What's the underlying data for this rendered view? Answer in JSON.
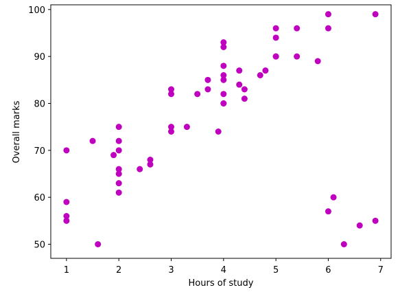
{
  "chart_data": {
    "type": "scatter",
    "title": "",
    "xlabel": "Hours of study",
    "ylabel": "Overall marks",
    "xlim": [
      0.7,
      7.2
    ],
    "ylim": [
      47,
      101
    ],
    "xticks": [
      1,
      2,
      3,
      4,
      5,
      6,
      7
    ],
    "yticks": [
      50,
      60,
      70,
      80,
      90,
      100
    ],
    "grid": false,
    "legend": "none",
    "marker_color": "#bf00bf",
    "points": [
      {
        "x": 1,
        "y": 70
      },
      {
        "x": 1,
        "y": 59
      },
      {
        "x": 1,
        "y": 56
      },
      {
        "x": 1,
        "y": 55
      },
      {
        "x": 1.5,
        "y": 72
      },
      {
        "x": 1.6,
        "y": 50
      },
      {
        "x": 1.9,
        "y": 69
      },
      {
        "x": 2,
        "y": 75
      },
      {
        "x": 2,
        "y": 72
      },
      {
        "x": 2,
        "y": 70
      },
      {
        "x": 2,
        "y": 66
      },
      {
        "x": 2,
        "y": 65
      },
      {
        "x": 2,
        "y": 63
      },
      {
        "x": 2,
        "y": 61
      },
      {
        "x": 2.4,
        "y": 66
      },
      {
        "x": 2.6,
        "y": 68
      },
      {
        "x": 2.6,
        "y": 67
      },
      {
        "x": 3,
        "y": 83
      },
      {
        "x": 3,
        "y": 82
      },
      {
        "x": 3,
        "y": 75
      },
      {
        "x": 3,
        "y": 74
      },
      {
        "x": 3.3,
        "y": 75
      },
      {
        "x": 3.5,
        "y": 82
      },
      {
        "x": 3.7,
        "y": 85
      },
      {
        "x": 3.7,
        "y": 83
      },
      {
        "x": 3.9,
        "y": 74
      },
      {
        "x": 4,
        "y": 93
      },
      {
        "x": 4,
        "y": 92
      },
      {
        "x": 4,
        "y": 88
      },
      {
        "x": 4,
        "y": 86
      },
      {
        "x": 4,
        "y": 85
      },
      {
        "x": 4,
        "y": 82
      },
      {
        "x": 4,
        "y": 80
      },
      {
        "x": 4,
        "y": 80
      },
      {
        "x": 4.3,
        "y": 87
      },
      {
        "x": 4.3,
        "y": 84
      },
      {
        "x": 4.4,
        "y": 83
      },
      {
        "x": 4.4,
        "y": 81
      },
      {
        "x": 4.7,
        "y": 86
      },
      {
        "x": 4.8,
        "y": 87
      },
      {
        "x": 5,
        "y": 96
      },
      {
        "x": 5,
        "y": 94
      },
      {
        "x": 5,
        "y": 90
      },
      {
        "x": 5,
        "y": 90
      },
      {
        "x": 5.4,
        "y": 96
      },
      {
        "x": 5.4,
        "y": 90
      },
      {
        "x": 5.8,
        "y": 89
      },
      {
        "x": 6,
        "y": 99
      },
      {
        "x": 6,
        "y": 96
      },
      {
        "x": 6,
        "y": 57
      },
      {
        "x": 6.1,
        "y": 60
      },
      {
        "x": 6.3,
        "y": 50
      },
      {
        "x": 6.6,
        "y": 54
      },
      {
        "x": 6.9,
        "y": 99
      },
      {
        "x": 6.9,
        "y": 55
      }
    ]
  }
}
